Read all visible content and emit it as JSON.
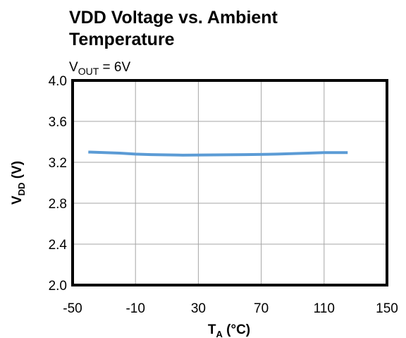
{
  "chart_data": {
    "type": "line",
    "title": [
      "VDD Voltage vs. Ambient",
      "Temperature"
    ],
    "subtitle": [
      "V",
      "OUT",
      " = 6V"
    ],
    "x_label": [
      "T",
      "A",
      " (°C)"
    ],
    "y_label": [
      "V",
      "DD",
      " (V)"
    ],
    "x": [
      -40,
      -20,
      -10,
      0,
      20,
      40,
      60,
      80,
      100,
      110,
      125
    ],
    "series": [
      {
        "color": "#5b9bd5",
        "values": [
          3.3,
          3.29,
          3.28,
          3.275,
          3.27,
          3.272,
          3.275,
          3.28,
          3.29,
          3.295,
          3.295
        ]
      }
    ],
    "xlim": [
      -50,
      150
    ],
    "xticks": [
      -50,
      -10,
      30,
      70,
      110,
      150
    ],
    "ylim": [
      2,
      4
    ],
    "yticks": [
      {
        "value": 2,
        "label": "2.0"
      },
      {
        "value": 2.4,
        "label": "2.4"
      },
      {
        "value": 2.8,
        "label": "2.8"
      },
      {
        "value": 3.2,
        "label": "3.2"
      },
      {
        "value": 3.6,
        "label": "3.6"
      },
      {
        "value": 4,
        "label": "4.0"
      }
    ],
    "grid": true
  }
}
